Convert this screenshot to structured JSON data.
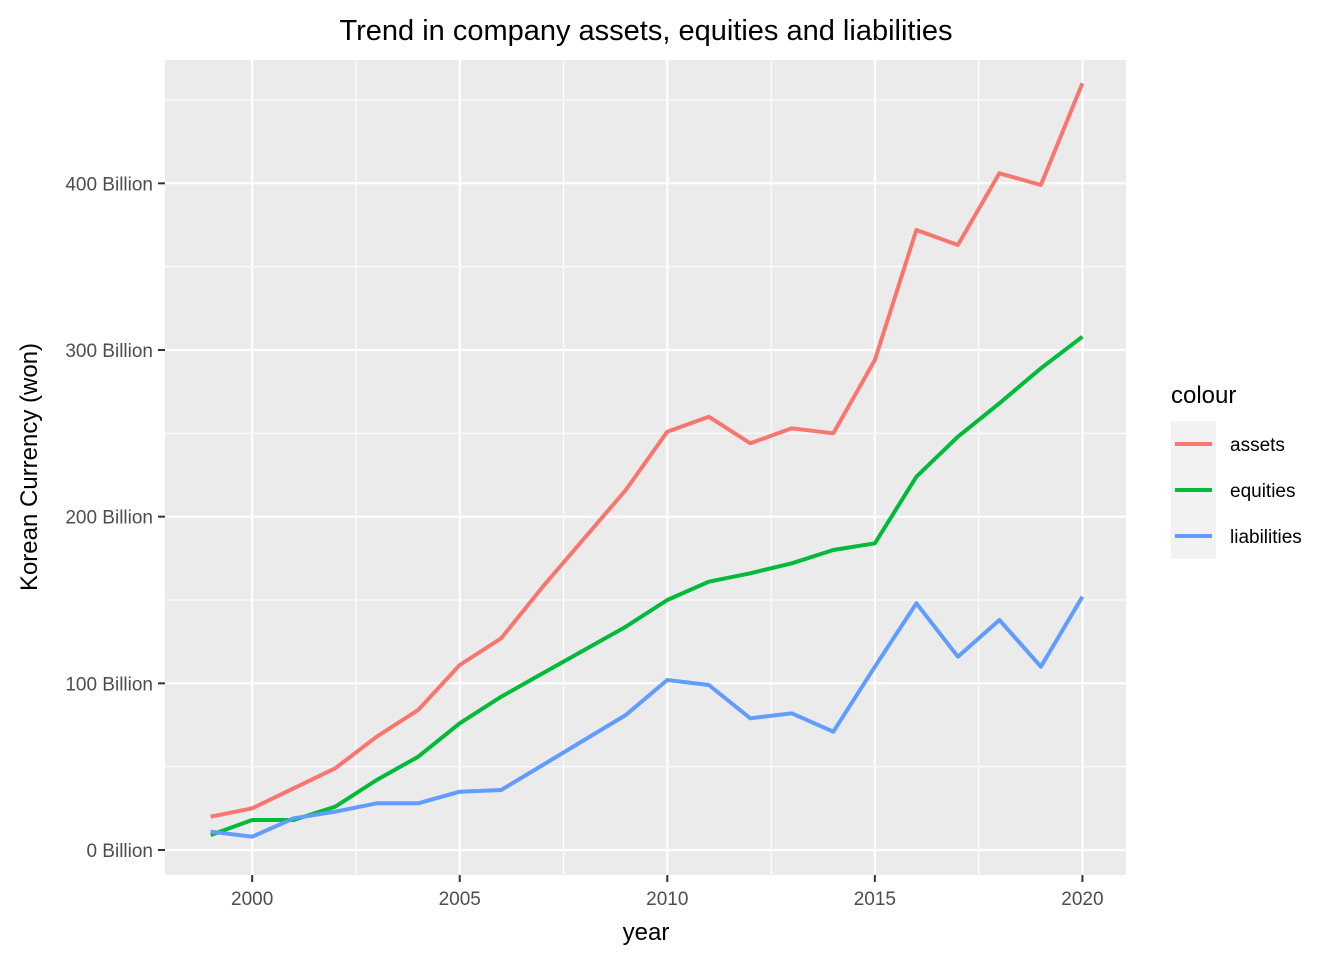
{
  "chart_data": {
    "type": "line",
    "title": "Trend in company assets, equities and liabilities",
    "xlabel": "year",
    "ylabel": "Korean Currency (won)",
    "x": [
      1999,
      2000,
      2001,
      2002,
      2003,
      2004,
      2005,
      2006,
      2007,
      2008,
      2009,
      2010,
      2011,
      2012,
      2013,
      2014,
      2015,
      2016,
      2017,
      2018,
      2019,
      2020
    ],
    "xlim": [
      1997.9,
      2021.05
    ],
    "ylim": [
      -15,
      474
    ],
    "x_ticks": [
      2000,
      2005,
      2010,
      2015,
      2020
    ],
    "x_tick_labels": [
      "2000",
      "2005",
      "2010",
      "2015",
      "2020"
    ],
    "y_ticks": [
      0,
      100,
      200,
      300,
      400
    ],
    "y_tick_labels": [
      "0 Billion",
      "100 Billion",
      "200 Billion",
      "300 Billion",
      "400 Billion"
    ],
    "y_unit": "Billion won",
    "grid": true,
    "legend_title": "colour",
    "legend_position": "right",
    "series": [
      {
        "name": "assets",
        "color": "#F8766D",
        "values": [
          20,
          25,
          37,
          49,
          68,
          84,
          111,
          127,
          158,
          187,
          216,
          251,
          260,
          244,
          253,
          250,
          294,
          372,
          363,
          406,
          399,
          460
        ]
      },
      {
        "name": "equities",
        "color": "#00BA38",
        "values": [
          9,
          18,
          18,
          26,
          42,
          56,
          76,
          92,
          106,
          120,
          134,
          150,
          161,
          166,
          172,
          180,
          184,
          224,
          248,
          268,
          289,
          308
        ]
      },
      {
        "name": "liabilities",
        "color": "#619CFF",
        "values": [
          11,
          8,
          19,
          23,
          28,
          28,
          35,
          36,
          51,
          66,
          81,
          102,
          99,
          79,
          82,
          71,
          110,
          148,
          116,
          138,
          110,
          152
        ]
      }
    ]
  }
}
